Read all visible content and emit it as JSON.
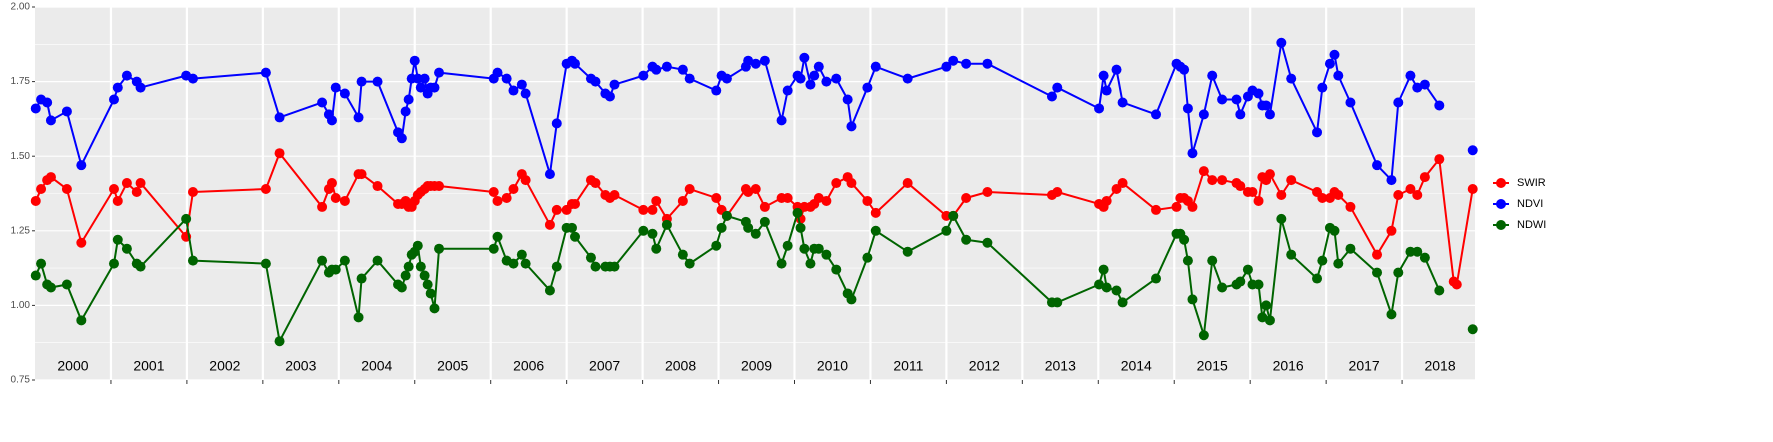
{
  "chart_data": {
    "type": "line",
    "x": [
      2000.01,
      2000.08,
      2000.16,
      2000.21,
      2000.42,
      2000.61,
      2001.04,
      2001.09,
      2001.21,
      2001.34,
      2001.39,
      2001.99,
      2002.08,
      2003.04,
      2003.22,
      2003.78,
      2003.87,
      2003.91,
      2003.96,
      2004.08,
      2004.26,
      2004.3,
      2004.51,
      2004.78,
      2004.83,
      2004.88,
      2004.92,
      2004.96,
      2005.0,
      2005.04,
      2005.08,
      2005.13,
      2005.17,
      2005.21,
      2005.26,
      2005.32,
      2006.04,
      2006.09,
      2006.21,
      2006.3,
      2006.41,
      2006.46,
      2006.78,
      2006.87,
      2007.0,
      2007.07,
      2007.11,
      2007.32,
      2007.38,
      2007.51,
      2007.57,
      2007.63,
      2008.01,
      2008.13,
      2008.18,
      2008.32,
      2008.53,
      2008.62,
      2008.97,
      2009.04,
      2009.11,
      2009.36,
      2009.39,
      2009.49,
      2009.61,
      2009.83,
      2009.91,
      2010.04,
      2010.08,
      2010.13,
      2010.21,
      2010.26,
      2010.32,
      2010.42,
      2010.55,
      2010.7,
      2010.75,
      2010.96,
      2011.07,
      2011.49,
      2012.0,
      2012.09,
      2012.26,
      2012.54,
      2013.39,
      2013.46,
      2014.01,
      2014.07,
      2014.11,
      2014.24,
      2014.32,
      2014.76,
      2015.03,
      2015.08,
      2015.13,
      2015.18,
      2015.24,
      2015.39,
      2015.5,
      2015.63,
      2015.82,
      2015.87,
      2015.97,
      2016.03,
      2016.11,
      2016.16,
      2016.21,
      2016.26,
      2016.41,
      2016.54,
      2016.88,
      2016.95,
      2017.05,
      2017.11,
      2017.16,
      2017.32,
      2017.67,
      2017.86,
      2017.95,
      2018.11,
      2018.2,
      2018.3,
      2018.49,
      2018.68,
      2018.72,
      2018.93
    ],
    "series": [
      {
        "name": "SWIR",
        "color": "#ff0000",
        "values": [
          1.35,
          1.39,
          1.42,
          1.43,
          1.39,
          1.21,
          1.39,
          1.35,
          1.41,
          1.38,
          1.41,
          1.23,
          1.38,
          1.39,
          1.51,
          1.33,
          1.39,
          1.41,
          1.36,
          1.35,
          1.44,
          1.44,
          1.4,
          1.34,
          1.34,
          1.35,
          1.33,
          1.33,
          1.35,
          1.37,
          1.38,
          1.39,
          1.4,
          1.4,
          1.4,
          1.4,
          1.38,
          1.35,
          1.36,
          1.39,
          1.44,
          1.42,
          1.27,
          1.32,
          1.32,
          1.34,
          1.34,
          1.42,
          1.41,
          1.37,
          1.36,
          1.37,
          1.32,
          1.32,
          1.35,
          1.29,
          1.35,
          1.39,
          1.36,
          1.32,
          1.3,
          1.39,
          1.38,
          1.39,
          1.33,
          1.36,
          1.36,
          1.33,
          1.29,
          1.33,
          1.33,
          1.34,
          1.36,
          1.35,
          1.41,
          1.43,
          1.41,
          1.35,
          1.31,
          1.41,
          1.3,
          1.3,
          1.36,
          1.38,
          1.37,
          1.38,
          1.34,
          1.33,
          1.35,
          1.39,
          1.41,
          1.32,
          1.33,
          1.36,
          1.36,
          1.35,
          1.33,
          1.45,
          1.42,
          1.42,
          1.41,
          1.4,
          1.38,
          1.38,
          1.35,
          1.43,
          1.42,
          1.44,
          1.37,
          1.42,
          1.38,
          1.36,
          1.36,
          1.38,
          1.37,
          1.33,
          1.17,
          1.25,
          1.37,
          1.39,
          1.37,
          1.43,
          1.49,
          1.08,
          1.07,
          1.39
        ]
      },
      {
        "name": "NDVI",
        "color": "#0000ff",
        "values": [
          1.66,
          1.69,
          1.68,
          1.62,
          1.65,
          1.47,
          1.69,
          1.73,
          1.77,
          1.75,
          1.73,
          1.77,
          1.76,
          1.78,
          1.63,
          1.68,
          1.64,
          1.62,
          1.73,
          1.71,
          1.63,
          1.75,
          1.75,
          1.58,
          1.56,
          1.65,
          1.69,
          1.76,
          1.82,
          1.76,
          1.73,
          1.76,
          1.71,
          1.73,
          1.73,
          1.78,
          1.76,
          1.78,
          1.76,
          1.72,
          1.74,
          1.71,
          1.44,
          1.61,
          1.81,
          1.82,
          1.81,
          1.76,
          1.75,
          1.71,
          1.7,
          1.74,
          1.77,
          1.8,
          1.79,
          1.8,
          1.79,
          1.76,
          1.72,
          1.77,
          1.76,
          1.8,
          1.82,
          1.81,
          1.82,
          1.62,
          1.72,
          1.77,
          1.76,
          1.83,
          1.74,
          1.77,
          1.8,
          1.75,
          1.76,
          1.69,
          1.6,
          1.73,
          1.8,
          1.76,
          1.8,
          1.82,
          1.81,
          1.81,
          1.7,
          1.73,
          1.66,
          1.77,
          1.72,
          1.79,
          1.68,
          1.64,
          1.81,
          1.8,
          1.79,
          1.66,
          1.51,
          1.64,
          1.77,
          1.69,
          1.69,
          1.64,
          1.7,
          1.72,
          1.71,
          1.67,
          1.67,
          1.64,
          1.88,
          1.76,
          1.58,
          1.73,
          1.81,
          1.84,
          1.77,
          1.68,
          1.47,
          1.42,
          1.68,
          1.77,
          1.73,
          1.74,
          1.67,
          null,
          null,
          1.52
        ]
      },
      {
        "name": "NDWI",
        "color": "#006400",
        "values": [
          1.1,
          1.14,
          1.07,
          1.06,
          1.07,
          0.95,
          1.14,
          1.22,
          1.19,
          1.14,
          1.13,
          1.29,
          1.15,
          1.14,
          0.88,
          1.15,
          1.11,
          1.12,
          1.12,
          1.15,
          0.96,
          1.09,
          1.15,
          1.07,
          1.06,
          1.1,
          1.13,
          1.17,
          1.18,
          1.2,
          1.13,
          1.1,
          1.07,
          1.04,
          0.99,
          1.19,
          1.19,
          1.23,
          1.15,
          1.14,
          1.17,
          1.14,
          1.05,
          1.13,
          1.26,
          1.26,
          1.23,
          1.16,
          1.13,
          1.13,
          1.13,
          1.13,
          1.25,
          1.24,
          1.19,
          1.27,
          1.17,
          1.14,
          1.2,
          1.26,
          1.3,
          1.28,
          1.26,
          1.24,
          1.28,
          1.14,
          1.2,
          1.31,
          1.26,
          1.19,
          1.14,
          1.19,
          1.19,
          1.17,
          1.12,
          1.04,
          1.02,
          1.16,
          1.25,
          1.18,
          1.25,
          1.3,
          1.22,
          1.21,
          1.01,
          1.01,
          1.07,
          1.12,
          1.06,
          1.05,
          1.01,
          1.09,
          1.24,
          1.24,
          1.22,
          1.15,
          1.02,
          0.9,
          1.15,
          1.06,
          1.07,
          1.08,
          1.12,
          1.07,
          1.07,
          0.96,
          1.0,
          0.95,
          1.29,
          1.17,
          1.09,
          1.15,
          1.26,
          1.25,
          1.14,
          1.19,
          1.11,
          0.97,
          1.11,
          1.18,
          1.18,
          1.16,
          1.05,
          null,
          null,
          0.92
        ]
      }
    ],
    "xlim": [
      2000,
      2018.96
    ],
    "xticks": [
      {
        "value": 2000.5,
        "label": "2000"
      },
      {
        "value": 2001.5,
        "label": "2001"
      },
      {
        "value": 2002.5,
        "label": "2002"
      },
      {
        "value": 2003.5,
        "label": "2003"
      },
      {
        "value": 2004.5,
        "label": "2004"
      },
      {
        "value": 2005.5,
        "label": "2005"
      },
      {
        "value": 2006.5,
        "label": "2006"
      },
      {
        "value": 2007.5,
        "label": "2007"
      },
      {
        "value": 2008.5,
        "label": "2008"
      },
      {
        "value": 2009.5,
        "label": "2009"
      },
      {
        "value": 2010.5,
        "label": "2010"
      },
      {
        "value": 2011.5,
        "label": "2011"
      },
      {
        "value": 2012.5,
        "label": "2012"
      },
      {
        "value": 2013.5,
        "label": "2013"
      },
      {
        "value": 2014.5,
        "label": "2014"
      },
      {
        "value": 2015.5,
        "label": "2015"
      },
      {
        "value": 2016.5,
        "label": "2016"
      },
      {
        "value": 2017.5,
        "label": "2017"
      },
      {
        "value": 2018.5,
        "label": "2018"
      }
    ],
    "x_gridlines": [
      2001,
      2002,
      2003,
      2004,
      2005,
      2006,
      2007,
      2008,
      2009,
      2010,
      2011,
      2012,
      2013,
      2014,
      2015,
      2016,
      2017,
      2018
    ],
    "ylim": [
      0.75,
      2.0
    ],
    "yticks": [
      {
        "value": 0.75,
        "label": "0.75"
      },
      {
        "value": 1.0,
        "label": "1.00"
      },
      {
        "value": 1.25,
        "label": "1.25"
      },
      {
        "value": 1.5,
        "label": "1.50"
      },
      {
        "value": 1.75,
        "label": "1.75"
      },
      {
        "value": 2.0,
        "label": "2.00"
      }
    ],
    "grid": true,
    "legend": "right"
  }
}
